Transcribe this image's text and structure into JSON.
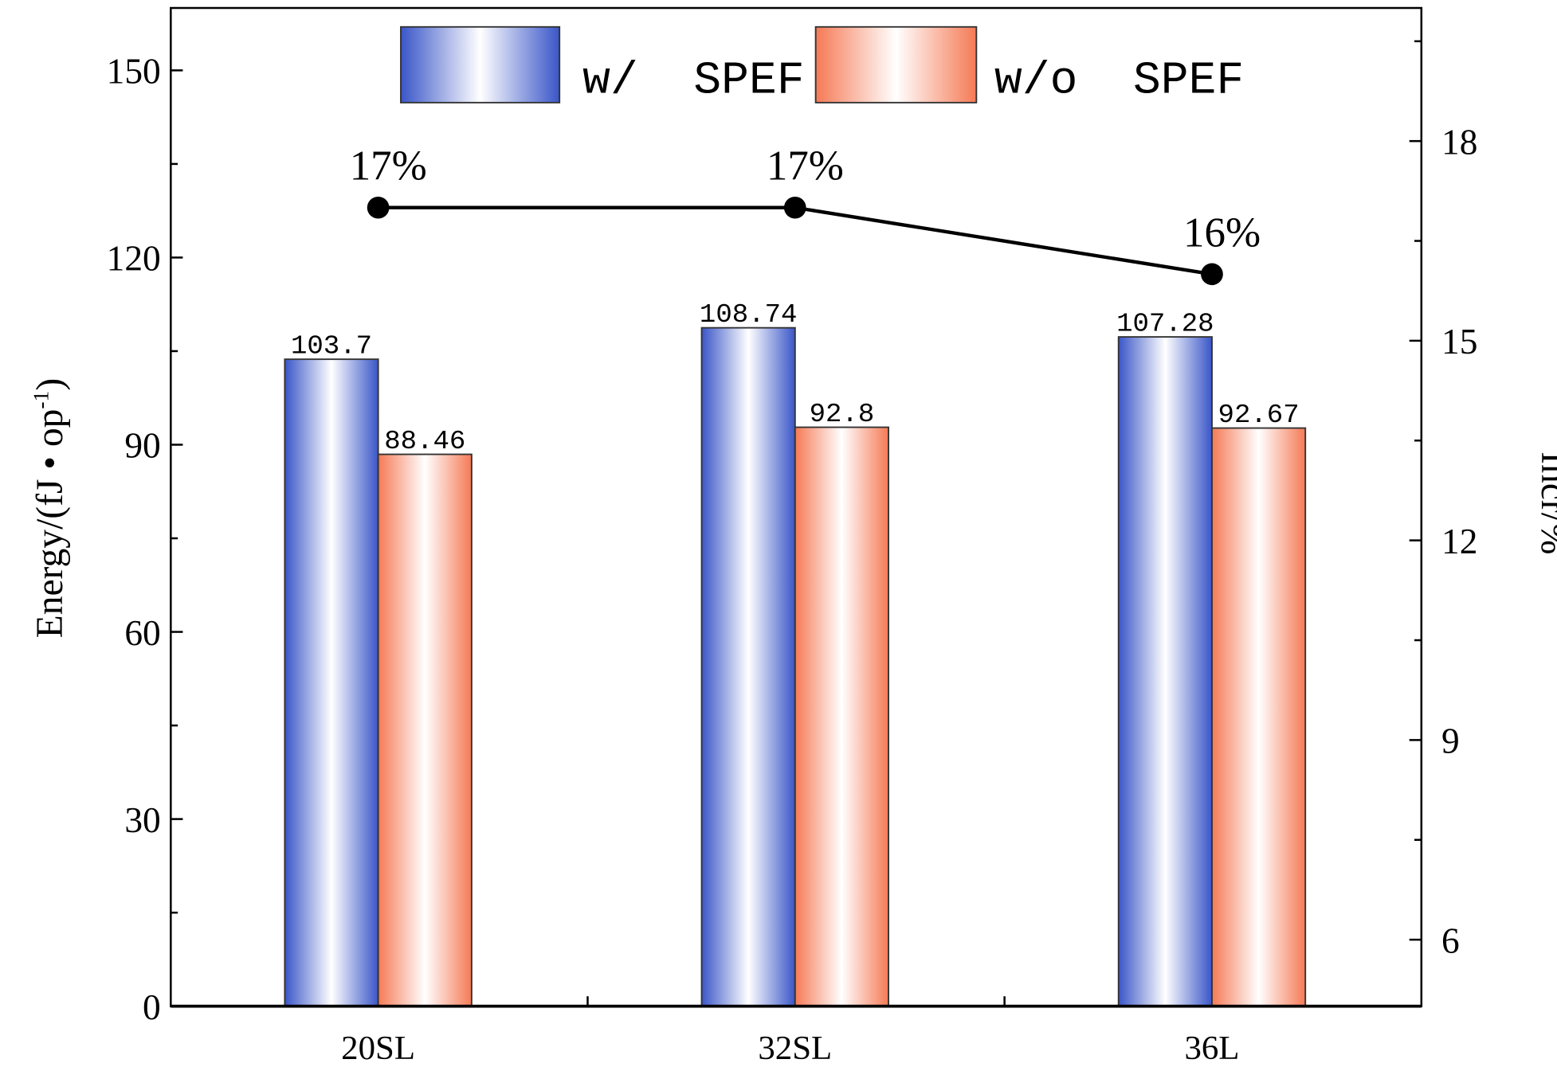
{
  "chart_data": {
    "type": "bar",
    "categories": [
      "20SL",
      "32SL",
      "36L"
    ],
    "series": [
      {
        "name": "w/  SPEF",
        "values": [
          103.7,
          108.74,
          107.28
        ],
        "labels": [
          "103.7",
          "108.74",
          "107.28"
        ],
        "color": "#3a56c8"
      },
      {
        "name": "w/o  SPEF",
        "values": [
          88.46,
          92.8,
          92.67
        ],
        "labels": [
          "88.46",
          "92.8",
          "92.67"
        ],
        "color": "#f57a55"
      }
    ],
    "line_series": {
      "name": "Incr",
      "values": [
        17,
        17,
        16
      ],
      "labels": [
        "17%",
        "17%",
        "16%"
      ],
      "axis": "right"
    },
    "ylabel": "Energy/(fJ • op",
    "ylabel_sup": "-1",
    "ylabel_end": ")",
    "y2label": "Incr/%",
    "ylim": [
      0,
      160
    ],
    "y2lim": [
      5,
      20
    ],
    "yticks": [
      "0",
      "30",
      "60",
      "90",
      "120",
      "150"
    ],
    "y2ticks": [
      "6",
      "9",
      "12",
      "15",
      "18"
    ],
    "legend_position": "top-center",
    "grid": false
  }
}
